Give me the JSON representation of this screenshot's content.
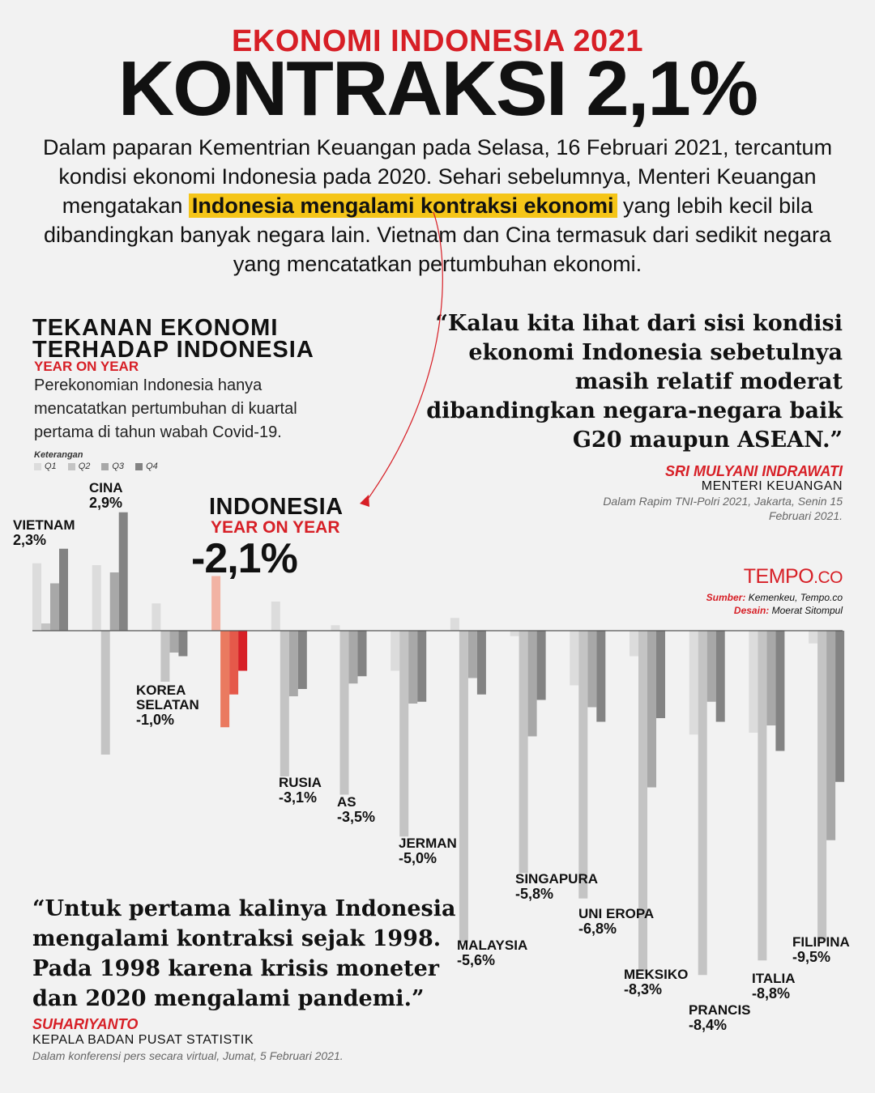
{
  "kicker": "EKONOMI INDONESIA 2021",
  "headline": "KONTRAKSI 2,1%",
  "intro": {
    "before": "Dalam paparan Kementrian Keuangan pada Selasa, 16 Februari 2021, tercantum kondisi ekonomi Indonesia pada 2020. Sehari sebelumnya, Menteri Keuangan mengatakan ",
    "highlight": "Indonesia mengalami kontraksi ekonomi",
    "after": " yang lebih kecil bila dibandingkan banyak negara lain. Vietnam dan Cina termasuk dari sedikit negara yang mencatatkan pertumbuhan ekonomi."
  },
  "section": {
    "title_line1": "TEKANAN EKONOMI",
    "title_line2": "TERHADAP INDONESIA",
    "subtitle": "YEAR ON YEAR",
    "description": "Perekonomian Indonesia hanya mencatatkan pertumbuhan di kuartal pertama di tahun wabah Covid-19."
  },
  "legend": {
    "title": "Keterangan",
    "items": [
      "Q1",
      "Q2",
      "Q3",
      "Q4"
    ]
  },
  "quote_minister": {
    "text": "“Kalau kita lihat dari sisi kondisi ekonomi Indonesia sebetulnya masih relatif moderat dibandingkan negara-negara baik G20 maupun ASEAN.”",
    "name": "SRI MULYANI INDRAWATI",
    "role": "MENTERI KEUANGAN",
    "source": "Dalam Rapim TNI-Polri 2021, Jakarta, Senin 15 Februari 2021."
  },
  "quote_bps": {
    "text": "“Untuk pertama kalinya Indonesia mengalami kontraksi sejak 1998. Pada 1998 karena krisis moneter dan 2020 mengalami pandemi.”",
    "name": "SUHARIYANTO",
    "role": "KEPALA BADAN PUSAT STATISTIK",
    "source": "Dalam konferensi pers secara virtual, Jumat, 5 Februari 2021."
  },
  "logo": {
    "main": "TEMPO",
    "suffix": ".CO"
  },
  "credits": {
    "source_label": "Sumber:",
    "source": "Kemenkeu, Tempo.co",
    "design_label": "Desain:",
    "design": "Moerat Sitompul"
  },
  "indonesia_callout": {
    "label": "INDONESIA",
    "sub": "YEAR ON YEAR",
    "value": "-2,1%"
  },
  "colors": {
    "accent_red": "#d71f26",
    "highlight": "#f5c518",
    "q1": "#dcdcdc",
    "q2": "#c4c4c4",
    "q3": "#a8a8a8",
    "q4": "#838383",
    "indo_q1": "#f2b3a4",
    "indo_q2": "#ea7a60",
    "indo_q3": "#e5594a",
    "indo_q4": "#d71f26"
  },
  "chart_data": {
    "type": "bar",
    "categories": [
      "VIETNAM",
      "CINA",
      "KOREA SELATAN",
      "INDONESIA",
      "RUSIA",
      "AS",
      "JERMAN",
      "MALAYSIA",
      "SINGAPURA",
      "UNI EROPA",
      "MEKSIKO",
      "PRANCIS",
      "ITALIA",
      "FILIPINA"
    ],
    "annual_labels": [
      "2,3%",
      "2,9%",
      "-1,0%",
      "-2,1%",
      "-3,1%",
      "-3,5%",
      "-5,0%",
      "-5,6%",
      "-5,8%",
      "-6,8%",
      "-8,3%",
      "-8,4%",
      "-8,8%",
      "-9,5%"
    ],
    "series": [
      {
        "name": "Q1",
        "values": [
          3.7,
          3.6,
          1.5,
          3.0,
          1.6,
          0.3,
          -2.2,
          0.7,
          -0.3,
          -3.0,
          -1.4,
          -5.7,
          -5.6,
          -0.7
        ]
      },
      {
        "name": "Q2",
        "values": [
          0.4,
          -6.8,
          -2.8,
          -5.3,
          -8.0,
          -9.0,
          -11.3,
          -17.1,
          -13.3,
          -14.7,
          -18.7,
          -18.9,
          -18.1,
          -17.0
        ]
      },
      {
        "name": "Q3",
        "values": [
          2.6,
          3.2,
          -1.2,
          -3.5,
          -3.6,
          -2.9,
          -4.0,
          -2.6,
          -5.8,
          -4.2,
          -8.6,
          -3.9,
          -5.2,
          -11.5
        ]
      },
      {
        "name": "Q4",
        "values": [
          4.5,
          6.5,
          -1.4,
          -2.2,
          -3.2,
          -2.5,
          -3.9,
          -3.5,
          -3.8,
          -5.0,
          -4.8,
          -5.0,
          -6.6,
          -8.3
        ]
      }
    ],
    "ylim": [
      -19,
      7
    ]
  }
}
